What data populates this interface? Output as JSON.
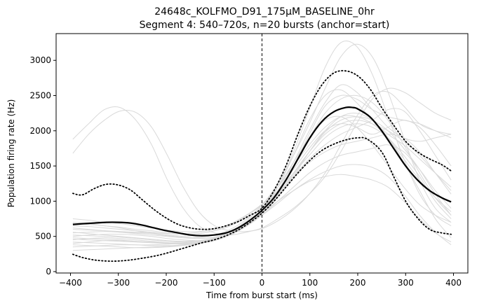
{
  "chart_data": {
    "type": "line",
    "title_lines": [
      "24648c_KOLFMO_D91_175µM_BASELINE_0hr",
      "Segment 4: 540–720s, n=20 bursts (anchor=start)"
    ],
    "xlabel": "Time from burst start (ms)",
    "ylabel": "Population firing rate (Hz)",
    "xlim": [
      -430,
      430
    ],
    "ylim": [
      -20,
      3380
    ],
    "xticks": [
      -400,
      -300,
      -200,
      -100,
      0,
      100,
      200,
      300,
      400
    ],
    "yticks": [
      0,
      500,
      1000,
      1500,
      2000,
      2500,
      3000
    ],
    "grid": false,
    "vline_x": 0,
    "colors": {
      "mean": "#000000",
      "band": "#000000",
      "individual": "#d9d9d9",
      "vline": "#000000"
    },
    "mean_series": {
      "x": [
        -395,
        -375,
        -350,
        -325,
        -300,
        -275,
        -250,
        -225,
        -200,
        -175,
        -150,
        -125,
        -100,
        -75,
        -50,
        -25,
        0,
        25,
        50,
        75,
        100,
        125,
        150,
        175,
        190,
        200,
        225,
        250,
        275,
        300,
        325,
        350,
        375,
        395
      ],
      "values": [
        670,
        680,
        690,
        700,
        700,
        690,
        660,
        620,
        580,
        550,
        520,
        510,
        520,
        550,
        620,
        730,
        870,
        1050,
        1300,
        1600,
        1900,
        2130,
        2270,
        2330,
        2330,
        2310,
        2200,
        2000,
        1750,
        1500,
        1300,
        1150,
        1050,
        990
      ]
    },
    "upper_series": {
      "x": [
        -395,
        -375,
        -350,
        -325,
        -300,
        -275,
        -250,
        -225,
        -200,
        -175,
        -150,
        -125,
        -100,
        -75,
        -50,
        -25,
        0,
        25,
        50,
        75,
        100,
        125,
        150,
        175,
        200,
        225,
        250,
        275,
        300,
        325,
        350,
        375,
        395
      ],
      "values": [
        1110,
        1090,
        1180,
        1240,
        1230,
        1160,
        1020,
        880,
        760,
        670,
        620,
        600,
        610,
        650,
        710,
        800,
        900,
        1150,
        1500,
        1950,
        2350,
        2650,
        2820,
        2850,
        2780,
        2600,
        2330,
        2080,
        1850,
        1700,
        1600,
        1520,
        1430
      ]
    },
    "lower_series": {
      "x": [
        -395,
        -375,
        -350,
        -325,
        -300,
        -275,
        -250,
        -225,
        -200,
        -175,
        -150,
        -125,
        -100,
        -75,
        -50,
        -25,
        0,
        25,
        50,
        75,
        100,
        125,
        150,
        175,
        200,
        220,
        250,
        275,
        300,
        325,
        350,
        375,
        395
      ],
      "values": [
        245,
        200,
        165,
        150,
        150,
        165,
        190,
        220,
        260,
        310,
        360,
        410,
        450,
        510,
        590,
        700,
        830,
        1000,
        1200,
        1400,
        1580,
        1720,
        1810,
        1870,
        1900,
        1880,
        1700,
        1350,
        1000,
        760,
        600,
        550,
        530
      ]
    },
    "individual_series": [
      {
        "values": [
          1880,
          2100,
          2300,
          2330,
          2150,
          1800,
          1300,
          900,
          650,
          550,
          520,
          560,
          620,
          750,
          900,
          1100,
          1350,
          1700,
          2100,
          2450,
          2600,
          2550,
          2400,
          2250,
          2150
        ]
      },
      {
        "values": [
          1680,
          1950,
          2150,
          2280,
          2260,
          2050,
          1650,
          1200,
          850,
          650,
          580,
          570,
          610,
          720,
          880,
          1100,
          1400,
          1800,
          2200,
          2500,
          2550,
          2350,
          2100,
          2000,
          1950
        ]
      },
      {
        "values": [
          650,
          640,
          620,
          600,
          580,
          560,
          540,
          530,
          540,
          580,
          650,
          760,
          900,
          1200,
          1700,
          2300,
          2900,
          3250,
          3200,
          2800,
          2200,
          1600,
          1100,
          800,
          650
        ]
      },
      {
        "values": [
          600,
          590,
          580,
          570,
          560,
          550,
          540,
          540,
          560,
          600,
          680,
          800,
          950,
          1250,
          1650,
          2100,
          2600,
          3050,
          3230,
          3050,
          2550,
          1900,
          1300,
          900,
          700
        ]
      },
      {
        "values": [
          550,
          560,
          570,
          560,
          550,
          540,
          520,
          500,
          480,
          490,
          560,
          680,
          850,
          1150,
          1550,
          2000,
          2400,
          2650,
          2550,
          2300,
          2050,
          1900,
          1850,
          1900,
          1950
        ]
      },
      {
        "values": [
          500,
          520,
          530,
          530,
          520,
          500,
          470,
          450,
          440,
          460,
          530,
          650,
          820,
          1100,
          1500,
          1950,
          2350,
          2500,
          2450,
          2300,
          2200,
          2150,
          2100,
          2000,
          1900
        ]
      },
      {
        "values": [
          450,
          470,
          480,
          470,
          450,
          430,
          410,
          400,
          410,
          450,
          540,
          680,
          870,
          1200,
          1650,
          2150,
          2500,
          2580,
          2400,
          2150,
          1950,
          1800,
          1600,
          1400,
          1200
        ]
      },
      {
        "values": [
          400,
          420,
          440,
          440,
          430,
          420,
          410,
          410,
          430,
          480,
          570,
          700,
          880,
          1150,
          1450,
          1750,
          2000,
          2100,
          2050,
          1950,
          2050,
          2150,
          2050,
          1800,
          1500
        ]
      },
      {
        "values": [
          350,
          360,
          370,
          380,
          380,
          380,
          390,
          400,
          420,
          470,
          560,
          700,
          880,
          1100,
          1350,
          1600,
          1800,
          1950,
          2050,
          2150,
          2300,
          2280,
          2000,
          1650,
          1300
        ]
      },
      {
        "values": [
          750,
          730,
          700,
          680,
          650,
          620,
          590,
          570,
          570,
          600,
          680,
          800,
          960,
          1200,
          1550,
          1900,
          2150,
          2200,
          2050,
          1800,
          1500,
          1200,
          950,
          800,
          700
        ]
      },
      {
        "values": [
          680,
          670,
          650,
          630,
          600,
          580,
          550,
          530,
          540,
          580,
          660,
          790,
          950,
          1150,
          1400,
          1650,
          1900,
          2050,
          2100,
          2050,
          1900,
          1650,
          1350,
          1000,
          750
        ]
      },
      {
        "values": [
          520,
          510,
          500,
          490,
          470,
          450,
          430,
          420,
          430,
          470,
          560,
          700,
          880,
          1100,
          1350,
          1550,
          1700,
          1800,
          1850,
          1900,
          1950,
          1900,
          1700,
          1400,
          1100
        ]
      },
      {
        "values": [
          480,
          470,
          460,
          450,
          430,
          410,
          400,
          390,
          400,
          440,
          520,
          640,
          800,
          1000,
          1200,
          1400,
          1550,
          1650,
          1700,
          1750,
          1800,
          1700,
          1450,
          1150,
          900
        ]
      },
      {
        "values": [
          420,
          410,
          400,
          390,
          380,
          370,
          370,
          380,
          410,
          470,
          560,
          680,
          830,
          1000,
          1150,
          1280,
          1350,
          1380,
          1350,
          1300,
          1200,
          1000,
          750,
          550,
          420
        ]
      },
      {
        "values": [
          380,
          370,
          360,
          350,
          340,
          340,
          350,
          370,
          400,
          450,
          530,
          650,
          800,
          970,
          1150,
          1300,
          1420,
          1500,
          1520,
          1480,
          1350,
          1100,
          800,
          560,
          380
        ]
      },
      {
        "values": [
          300,
          310,
          320,
          330,
          340,
          350,
          360,
          380,
          410,
          460,
          540,
          660,
          820,
          1050,
          1350,
          1700,
          2000,
          2200,
          2250,
          2150,
          1900,
          1550,
          1150,
          750,
          480
        ]
      },
      {
        "values": [
          620,
          600,
          580,
          560,
          540,
          520,
          500,
          480,
          470,
          490,
          560,
          680,
          860,
          1100,
          1400,
          1700,
          1950,
          2100,
          2150,
          2100,
          2000,
          1850,
          1650,
          1400,
          1150
        ]
      },
      {
        "values": [
          560,
          540,
          520,
          500,
          480,
          460,
          440,
          430,
          440,
          480,
          570,
          720,
          920,
          1200,
          1550,
          1900,
          2250,
          2450,
          2500,
          2400,
          2150,
          1800,
          1400,
          1050,
          800
        ]
      },
      {
        "values": [
          700,
          680,
          650,
          620,
          580,
          540,
          510,
          490,
          490,
          520,
          600,
          740,
          940,
          1200,
          1500,
          1800,
          2050,
          2200,
          2200,
          2100,
          1900,
          1600,
          1300,
          1050,
          850
        ]
      },
      {
        "values": [
          460,
          450,
          440,
          430,
          420,
          410,
          400,
          400,
          410,
          450,
          530,
          660,
          840,
          1080,
          1380,
          1700,
          1980,
          2150,
          2200,
          2150,
          2000,
          1750,
          1450,
          1100,
          800
        ]
      }
    ]
  }
}
